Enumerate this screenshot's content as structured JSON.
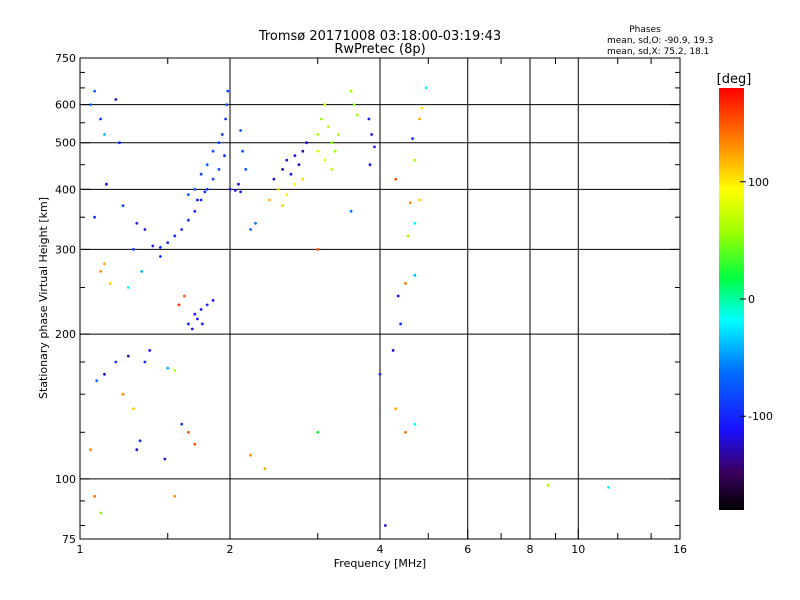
{
  "chart_data": {
    "type": "scatter",
    "title": "Tromsø 20171008 03:18:00-03:19:43",
    "subtitle": "RwPretec (8p)",
    "xlabel": "Frequency [MHz]",
    "ylabel": "Stationary phase Virtual Height [km]",
    "x_scale": "log",
    "y_scale": "log",
    "xlim": [
      1,
      16
    ],
    "ylim": [
      75,
      750
    ],
    "x_ticks": [
      1,
      2,
      4,
      6,
      8,
      10,
      16
    ],
    "y_ticks": [
      75,
      100,
      200,
      300,
      400,
      500,
      600,
      750
    ],
    "grid": true,
    "stats": {
      "heading": "Phases",
      "o_line": "mean, sd,O: -90.9, 19.3",
      "x_line": "mean, sd,X:  75.2, 18.1"
    },
    "colorbar": {
      "label": "[deg]",
      "range": [
        -180,
        180
      ],
      "ticks": [
        -100,
        0,
        100
      ]
    },
    "series": [
      {
        "points": [
          [
            1.05,
            600,
            -60
          ],
          [
            1.07,
            640,
            -70
          ],
          [
            1.1,
            560,
            -90
          ],
          [
            1.12,
            520,
            -40
          ],
          [
            1.18,
            615,
            -120
          ],
          [
            1.2,
            500,
            -100
          ],
          [
            1.13,
            410,
            -110
          ],
          [
            1.07,
            350,
            -95
          ],
          [
            1.22,
            370,
            -80
          ],
          [
            1.3,
            340,
            -100
          ],
          [
            1.28,
            300,
            -90
          ],
          [
            1.35,
            330,
            -110
          ],
          [
            1.4,
            305,
            -100
          ],
          [
            1.45,
            303,
            -95
          ],
          [
            1.5,
            310,
            -100
          ],
          [
            1.55,
            320,
            -105
          ],
          [
            1.6,
            330,
            -95
          ],
          [
            1.65,
            345,
            -90
          ],
          [
            1.7,
            360,
            -100
          ],
          [
            1.75,
            380,
            -95
          ],
          [
            1.8,
            400,
            -90
          ],
          [
            1.85,
            420,
            -85
          ],
          [
            1.9,
            440,
            -80
          ],
          [
            1.95,
            470,
            -100
          ],
          [
            1.93,
            520,
            -95
          ],
          [
            1.96,
            560,
            -90
          ],
          [
            1.97,
            600,
            -85
          ],
          [
            1.98,
            640,
            -80
          ],
          [
            1.65,
            390,
            -70
          ],
          [
            1.7,
            400,
            -75
          ],
          [
            1.75,
            430,
            -80
          ],
          [
            1.8,
            450,
            -70
          ],
          [
            1.85,
            480,
            -75
          ],
          [
            1.9,
            500,
            -80
          ],
          [
            1.72,
            380,
            -110
          ],
          [
            1.78,
            395,
            -100
          ],
          [
            2.0,
            400,
            -110
          ],
          [
            2.05,
            398,
            -110
          ],
          [
            2.1,
            395,
            -105
          ],
          [
            2.08,
            410,
            -115
          ],
          [
            2.15,
            440,
            -70
          ],
          [
            2.12,
            480,
            -75
          ],
          [
            2.1,
            530,
            -80
          ],
          [
            2.2,
            330,
            -60
          ],
          [
            2.25,
            340,
            -65
          ],
          [
            2.45,
            420,
            -120
          ],
          [
            2.55,
            440,
            -130
          ],
          [
            2.6,
            460,
            -125
          ],
          [
            2.65,
            430,
            -115
          ],
          [
            2.7,
            470,
            -120
          ],
          [
            2.75,
            450,
            -125
          ],
          [
            2.8,
            480,
            -130
          ],
          [
            2.85,
            500,
            -120
          ],
          [
            2.5,
            400,
            110
          ],
          [
            2.6,
            390,
            100
          ],
          [
            2.7,
            410,
            95
          ],
          [
            2.8,
            420,
            105
          ],
          [
            2.4,
            380,
            120
          ],
          [
            2.55,
            370,
            110
          ],
          [
            3.0,
            520,
            60
          ],
          [
            3.05,
            560,
            55
          ],
          [
            3.1,
            600,
            70
          ],
          [
            3.15,
            540,
            65
          ],
          [
            3.2,
            500,
            50
          ],
          [
            3.25,
            480,
            55
          ],
          [
            3.3,
            520,
            60
          ],
          [
            3.0,
            480,
            80
          ],
          [
            3.1,
            460,
            75
          ],
          [
            3.2,
            440,
            70
          ],
          [
            3.5,
            640,
            55
          ],
          [
            3.55,
            600,
            50
          ],
          [
            3.6,
            570,
            60
          ],
          [
            3.8,
            560,
            -110
          ],
          [
            3.85,
            520,
            -115
          ],
          [
            3.9,
            490,
            -105
          ],
          [
            3.82,
            450,
            -110
          ],
          [
            1.65,
            210,
            -110
          ],
          [
            1.7,
            220,
            -105
          ],
          [
            1.75,
            225,
            -110
          ],
          [
            1.8,
            230,
            -100
          ],
          [
            1.85,
            235,
            -110
          ],
          [
            1.68,
            205,
            -115
          ],
          [
            1.72,
            215,
            -100
          ],
          [
            1.76,
            210,
            -105
          ],
          [
            1.62,
            240,
            150
          ],
          [
            1.58,
            230,
            160
          ],
          [
            1.1,
            270,
            130
          ],
          [
            1.12,
            280,
            120
          ],
          [
            1.15,
            255,
            110
          ],
          [
            1.25,
            250,
            -20
          ],
          [
            1.33,
            270,
            -40
          ],
          [
            1.45,
            290,
            -100
          ],
          [
            1.08,
            160,
            -60
          ],
          [
            1.12,
            165,
            -120
          ],
          [
            1.18,
            175,
            -90
          ],
          [
            1.25,
            180,
            -130
          ],
          [
            1.35,
            175,
            -100
          ],
          [
            1.38,
            185,
            -110
          ],
          [
            1.5,
            170,
            -40
          ],
          [
            1.55,
            168,
            60
          ],
          [
            1.22,
            150,
            130
          ],
          [
            1.28,
            140,
            110
          ],
          [
            1.3,
            115,
            -120
          ],
          [
            1.32,
            120,
            -100
          ],
          [
            1.48,
            110,
            -120
          ],
          [
            1.6,
            130,
            -90
          ],
          [
            1.65,
            125,
            150
          ],
          [
            1.7,
            118,
            150
          ],
          [
            1.05,
            115,
            130
          ],
          [
            1.07,
            92,
            140
          ],
          [
            1.1,
            85,
            50
          ],
          [
            1.55,
            92,
            130
          ],
          [
            2.35,
            105,
            120
          ],
          [
            2.2,
            112,
            130
          ],
          [
            3.0,
            125,
            20
          ],
          [
            4.1,
            80,
            -120
          ],
          [
            4.0,
            165,
            -100
          ],
          [
            4.25,
            185,
            -120
          ],
          [
            4.4,
            210,
            -100
          ],
          [
            4.35,
            240,
            -115
          ],
          [
            4.5,
            255,
            140
          ],
          [
            4.7,
            265,
            -40
          ],
          [
            4.55,
            320,
            60
          ],
          [
            4.7,
            340,
            -20
          ],
          [
            4.6,
            375,
            130
          ],
          [
            4.8,
            380,
            110
          ],
          [
            4.3,
            420,
            150
          ],
          [
            4.7,
            460,
            60
          ],
          [
            4.65,
            510,
            -90
          ],
          [
            4.8,
            560,
            120
          ],
          [
            4.85,
            590,
            100
          ],
          [
            4.95,
            650,
            -20
          ],
          [
            4.3,
            140,
            120
          ],
          [
            4.5,
            125,
            140
          ],
          [
            4.7,
            130,
            -20
          ],
          [
            8.7,
            97,
            60
          ],
          [
            11.5,
            96,
            -20
          ],
          [
            3.5,
            360,
            -60
          ],
          [
            3.0,
            300,
            150
          ]
        ]
      }
    ]
  }
}
